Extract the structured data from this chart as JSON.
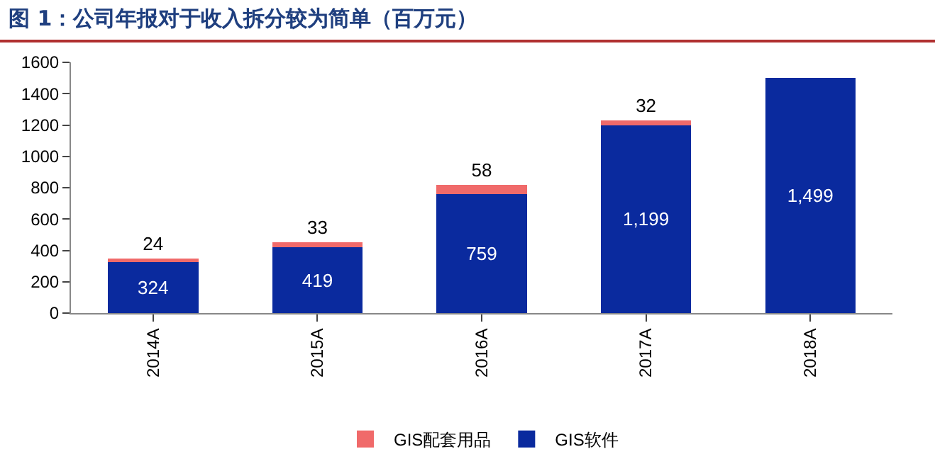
{
  "chart_data": {
    "type": "bar",
    "title": "图 1：公司年报对于收入拆分较为简单（百万元）",
    "stacked": true,
    "categories": [
      "2014A",
      "2015A",
      "2016A",
      "2017A",
      "2018A"
    ],
    "series": [
      {
        "name": "GIS软件",
        "color": "#0a2a9e",
        "values": [
          324,
          419,
          759,
          1199,
          1499
        ],
        "value_labels": [
          "324",
          "419",
          "759",
          "1,199",
          "1,499"
        ]
      },
      {
        "name": "GIS配套用品",
        "color": "#f06a6a",
        "values": [
          24,
          33,
          58,
          32,
          null
        ],
        "value_labels": [
          "24",
          "33",
          "58",
          "32",
          null
        ]
      }
    ],
    "ylim": [
      0,
      1600
    ],
    "yticks": [
      0,
      200,
      400,
      600,
      800,
      1000,
      1200,
      1400,
      1600
    ],
    "grid": false,
    "legend": "bottom"
  }
}
